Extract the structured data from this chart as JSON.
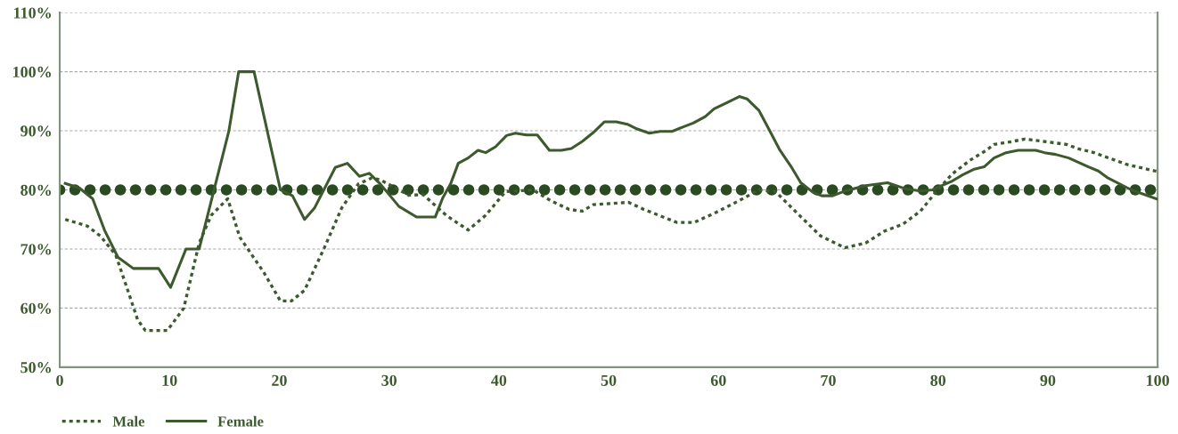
{
  "chart_data": {
    "type": "line",
    "xlim": [
      0,
      100
    ],
    "ylim": [
      50,
      110
    ],
    "xticks": [
      0,
      10,
      20,
      30,
      40,
      50,
      60,
      70,
      80,
      90,
      100
    ],
    "yticks": [
      {
        "value": 50,
        "label": "50%"
      },
      {
        "value": 60,
        "label": "60%"
      },
      {
        "value": 70,
        "label": "70%"
      },
      {
        "value": 80,
        "label": "80%"
      },
      {
        "value": 90,
        "label": "90%"
      },
      {
        "value": 100,
        "label": "100%"
      },
      {
        "value": 110,
        "label": "110%"
      }
    ],
    "grid": "y",
    "legend": "bottom left",
    "marker": "none",
    "ref_lines": [
      {
        "axis": "y",
        "value": 80,
        "color": "#2a4a22",
        "line_style": "dotted"
      }
    ],
    "series": [
      {
        "name": "Male",
        "color": "#3c5a2e",
        "line_style": "dotted",
        "x": [
          0.5,
          2.5,
          3.7,
          5.1,
          6.2,
          7.1,
          7.8,
          9.8,
          11.3,
          12.7,
          13.8,
          15.3,
          16.4,
          18.6,
          20.1,
          21.1,
          22.3,
          24.1,
          25.7,
          27.2,
          28.4,
          29.2,
          31.8,
          33.1,
          35.2,
          37.2,
          38.8,
          40.6,
          43.1,
          44.7,
          46.4,
          47.6,
          48.6,
          50.3,
          51.8,
          53.2,
          56.2,
          57.8,
          59.8,
          61.9,
          63.7,
          65.2,
          67.2,
          69.3,
          71.5,
          73.4,
          75.1,
          76.8,
          78.4,
          79.7,
          81.3,
          82.9,
          84.4,
          85.1,
          86.5,
          87.9,
          89.6,
          91.7,
          92.7,
          94.2,
          95.7,
          97.2,
          100
        ],
        "values": [
          75,
          73.9,
          72.2,
          69,
          63,
          58,
          56.2,
          56.2,
          60,
          71,
          75.7,
          78.5,
          72,
          66,
          61.2,
          61.2,
          63,
          70.2,
          77,
          81,
          82,
          81.7,
          79.1,
          79.2,
          75.7,
          73.2,
          75.7,
          79.7,
          80,
          78.2,
          76.7,
          76.4,
          77.5,
          77.7,
          77.9,
          76.7,
          74.5,
          74.5,
          76.2,
          78.2,
          80,
          79.7,
          76,
          72.2,
          70.2,
          71,
          73,
          74.2,
          76.4,
          79.4,
          82.7,
          85,
          86.7,
          87.7,
          88.1,
          88.6,
          88.2,
          87.7,
          87,
          86.3,
          85.3,
          84.3,
          83.1
        ]
      },
      {
        "name": "Female",
        "color": "#3c5a2e",
        "line_style": "solid",
        "x": [
          0.5,
          1.8,
          3.0,
          4.1,
          5.3,
          6.7,
          9.0,
          10.1,
          11.5,
          12.7,
          15.4,
          16.3,
          17.7,
          20.1,
          21.2,
          22.3,
          23.2,
          25.1,
          26.2,
          27.3,
          28.2,
          29.2,
          30.9,
          32.5,
          34.2,
          34.9,
          35.6,
          36.3,
          37.2,
          38.1,
          38.8,
          39.7,
          40.7,
          41.5,
          42.5,
          43.5,
          44.6,
          45.7,
          46.6,
          47.6,
          48.6,
          49.6,
          50.7,
          51.7,
          52.6,
          53.7,
          54.7,
          55.8,
          56.7,
          57.7,
          58.8,
          59.6,
          60.7,
          61.9,
          62.6,
          63.7,
          64.7,
          65.6,
          66.7,
          67.5,
          68.6,
          69.4,
          70.4,
          71.5,
          73.4,
          75.4,
          77.0,
          78.4,
          79.5,
          80.3,
          81.2,
          82.2,
          83.3,
          84.2,
          85.1,
          86.2,
          87.3,
          88.9,
          89.7,
          90.7,
          91.9,
          93.7,
          94.6,
          95.4,
          97.6,
          100
        ],
        "values": [
          81.1,
          80.3,
          78.5,
          73.1,
          68.6,
          66.7,
          66.7,
          63.5,
          70,
          70,
          89.9,
          100,
          100,
          80,
          79,
          75,
          76.9,
          83.8,
          84.5,
          82.3,
          82.8,
          81,
          77.2,
          75.4,
          75.4,
          78.7,
          81,
          84.5,
          85.4,
          86.7,
          86.3,
          87.3,
          89.2,
          89.6,
          89.3,
          89.3,
          86.7,
          86.7,
          87,
          88.2,
          89.7,
          91.5,
          91.5,
          91.1,
          90.3,
          89.6,
          89.9,
          89.9,
          90.6,
          91.3,
          92.4,
          93.7,
          94.7,
          95.8,
          95.4,
          93.4,
          89.9,
          86.7,
          83.7,
          81.2,
          79.6,
          79,
          79,
          79.8,
          80.7,
          81.2,
          80.2,
          79.8,
          80,
          80.7,
          81.4,
          82.5,
          83.5,
          83.9,
          85.4,
          86.3,
          86.7,
          86.7,
          86.3,
          86,
          85.4,
          83.9,
          83.2,
          82.1,
          80,
          78.4
        ]
      }
    ]
  }
}
